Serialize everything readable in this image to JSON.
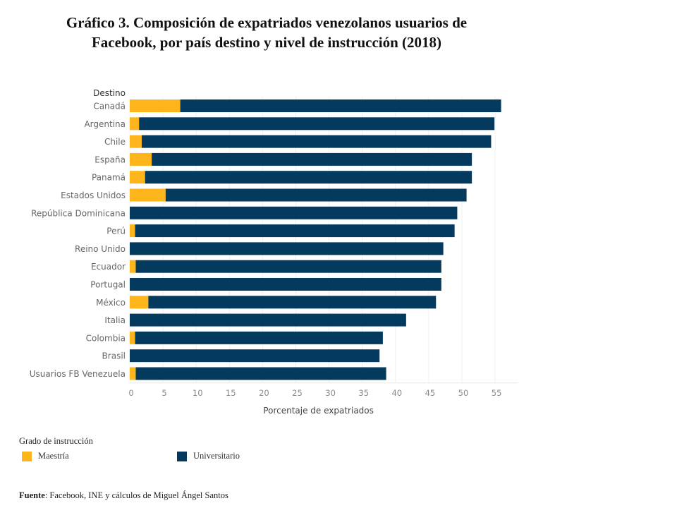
{
  "title_lines": [
    "Gráfico 3. Composición de expatriados venezolanos usuarios de",
    "Facebook, por país destino y nivel de instrucción (2018)"
  ],
  "legend": {
    "title": "Grado de instrucción",
    "items": [
      {
        "label": "Maestría",
        "color": "#FDB51B"
      },
      {
        "label": "Universitario",
        "color": "#043A5E"
      }
    ]
  },
  "source": {
    "label": "Fuente",
    "text": ": Facebook, INE y cálculos de Miguel Ángel Santos"
  },
  "chart_data": {
    "type": "bar",
    "orientation": "horizontal",
    "stacked": true,
    "title": "Gráfico 3. Composición de expatriados venezolanos usuarios de Facebook, por país destino y nivel de instrucción (2018)",
    "category_axis_title": "Destino",
    "xlabel": "Porcentaje de expatriados",
    "ylabel": "Destino",
    "xlim": [
      0,
      58.5
    ],
    "xticks": [
      0,
      5,
      10,
      15,
      20,
      25,
      30,
      35,
      40,
      45,
      50,
      55
    ],
    "grid": "vertical",
    "legend_position": "bottom-left",
    "categories": [
      "Canadá",
      "Argentina",
      "Chile",
      "España",
      "Panamá",
      "Estados Unidos",
      "República Dominicana",
      "Perú",
      "Reino Unido",
      "Ecuador",
      "Portugal",
      "México",
      "Italia",
      "Colombia",
      "Brasil",
      "Usuarios FB Venezuela"
    ],
    "series": [
      {
        "name": "Maestría",
        "color": "#FDB51B",
        "values": [
          7.6,
          1.4,
          1.8,
          3.3,
          2.3,
          5.4,
          0.0,
          0.8,
          0.0,
          0.9,
          0.0,
          2.8,
          0.0,
          0.8,
          0.0,
          0.9
        ]
      },
      {
        "name": "Universitario",
        "color": "#043A5E",
        "values": [
          48.3,
          53.5,
          52.6,
          48.2,
          49.2,
          45.3,
          49.3,
          48.1,
          47.2,
          46.0,
          46.9,
          43.3,
          41.6,
          37.3,
          37.6,
          37.7
        ]
      }
    ]
  }
}
